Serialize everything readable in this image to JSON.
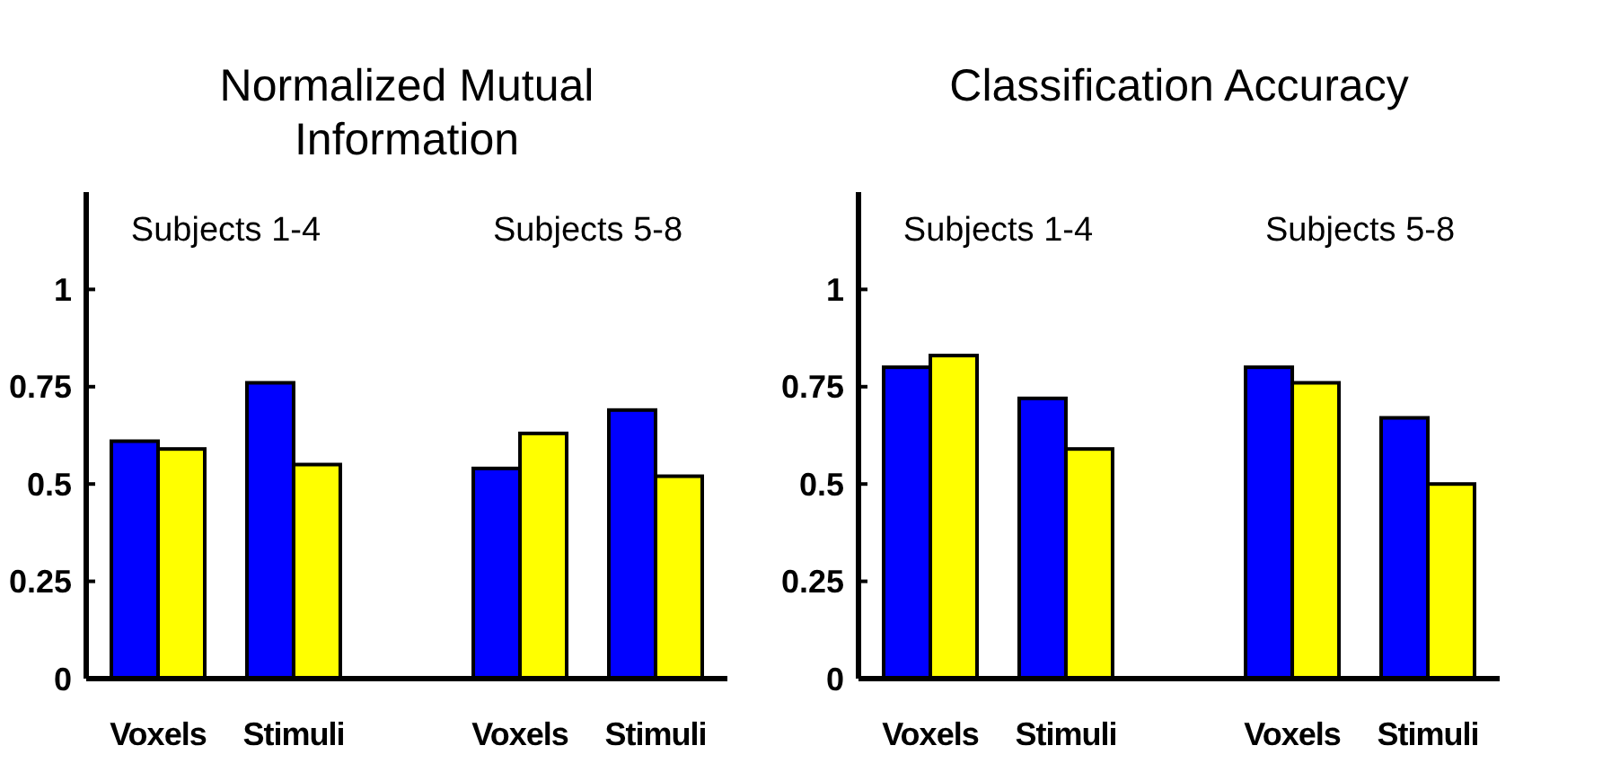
{
  "chart_data": [
    {
      "type": "bar",
      "title": "Normalized Mutual Information",
      "categories": [
        "Voxels",
        "Stimuli",
        "Voxels",
        "Stimuli"
      ],
      "series": [
        {
          "color": "#0000ff",
          "values": [
            0.61,
            0.76,
            0.54,
            0.69
          ]
        },
        {
          "color": "#ffff00",
          "values": [
            0.59,
            0.55,
            0.63,
            0.52
          ]
        }
      ],
      "ylim": [
        0,
        1.25
      ],
      "yticks": [
        0,
        0.25,
        0.5,
        0.75,
        1
      ],
      "annotations": [
        "Subjects 1-4",
        "Subjects 5-8"
      ]
    },
    {
      "type": "bar",
      "title": "Classification Accuracy",
      "categories": [
        "Voxels",
        "Stimuli",
        "Voxels",
        "Stimuli"
      ],
      "series": [
        {
          "color": "#0000ff",
          "values": [
            0.8,
            0.72,
            0.8,
            0.67
          ]
        },
        {
          "color": "#ffff00",
          "values": [
            0.83,
            0.59,
            0.76,
            0.5
          ]
        }
      ],
      "ylim": [
        0,
        1.25
      ],
      "yticks": [
        0,
        0.25,
        0.5,
        0.75,
        1
      ],
      "annotations": [
        "Subjects 1-4",
        "Subjects 5-8"
      ]
    }
  ]
}
